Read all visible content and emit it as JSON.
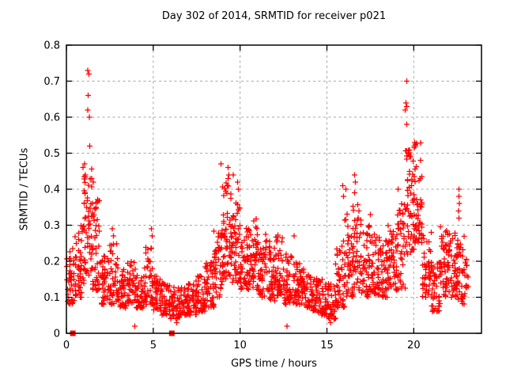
{
  "chart_data": {
    "type": "scatter",
    "title": "Day 302 of 2014, SRMTID for receiver p021",
    "xlabel": "GPS time / hours",
    "ylabel": "SRMTID / TECUs",
    "xlim": [
      0,
      23.9
    ],
    "ylim": [
      0,
      0.8
    ],
    "x_data_end": 23.15,
    "xtick_values": [
      0,
      5,
      10,
      15,
      20
    ],
    "xtick_labels": [
      "0",
      "5",
      "10",
      "15",
      "20"
    ],
    "ytick_values": [
      0,
      0.1,
      0.2,
      0.3,
      0.4,
      0.5,
      0.6,
      0.7,
      0.8
    ],
    "ytick_labels": [
      "0",
      "0.1",
      "0.2",
      "0.3",
      "0.4",
      "0.5",
      "0.6",
      "0.7",
      "0.8"
    ],
    "grid": true,
    "legend": "none",
    "marker": "plus-cross",
    "marker_color": "#ff0000",
    "grid_color": "#a6a6a6",
    "axis_color": "#000000",
    "background_color": "#ffffff",
    "series_name": "SRMTID",
    "density_bins_format": [
      "bin_start_hour",
      "y_low",
      "y_high",
      "point_count"
    ],
    "density_bin_width_hours": 0.5,
    "density_bins": [
      [
        0.0,
        0.08,
        0.24,
        40
      ],
      [
        0.5,
        0.1,
        0.3,
        46
      ],
      [
        1.0,
        0.16,
        0.46,
        56
      ],
      [
        1.5,
        0.12,
        0.38,
        48
      ],
      [
        2.0,
        0.08,
        0.22,
        42
      ],
      [
        2.5,
        0.08,
        0.26,
        44
      ],
      [
        3.0,
        0.07,
        0.18,
        40
      ],
      [
        3.5,
        0.08,
        0.2,
        42
      ],
      [
        4.0,
        0.07,
        0.16,
        40
      ],
      [
        4.5,
        0.08,
        0.24,
        44
      ],
      [
        5.0,
        0.06,
        0.16,
        40
      ],
      [
        5.5,
        0.05,
        0.14,
        40
      ],
      [
        6.0,
        0.04,
        0.13,
        40
      ],
      [
        6.5,
        0.05,
        0.13,
        40
      ],
      [
        7.0,
        0.05,
        0.15,
        42
      ],
      [
        7.5,
        0.06,
        0.16,
        42
      ],
      [
        8.0,
        0.07,
        0.2,
        44
      ],
      [
        8.5,
        0.1,
        0.3,
        48
      ],
      [
        9.0,
        0.15,
        0.42,
        54
      ],
      [
        9.5,
        0.14,
        0.38,
        50
      ],
      [
        10.0,
        0.12,
        0.3,
        48
      ],
      [
        10.5,
        0.12,
        0.32,
        48
      ],
      [
        11.0,
        0.1,
        0.28,
        46
      ],
      [
        11.5,
        0.09,
        0.26,
        45
      ],
      [
        12.0,
        0.1,
        0.28,
        45
      ],
      [
        12.5,
        0.08,
        0.22,
        44
      ],
      [
        13.0,
        0.08,
        0.2,
        42
      ],
      [
        13.5,
        0.07,
        0.18,
        42
      ],
      [
        14.0,
        0.06,
        0.16,
        42
      ],
      [
        14.5,
        0.05,
        0.15,
        40
      ],
      [
        15.0,
        0.04,
        0.14,
        40
      ],
      [
        15.5,
        0.07,
        0.26,
        44
      ],
      [
        16.0,
        0.1,
        0.34,
        46
      ],
      [
        16.5,
        0.12,
        0.36,
        48
      ],
      [
        17.0,
        0.1,
        0.3,
        45
      ],
      [
        17.5,
        0.1,
        0.28,
        45
      ],
      [
        18.0,
        0.1,
        0.26,
        45
      ],
      [
        18.5,
        0.12,
        0.3,
        45
      ],
      [
        19.0,
        0.12,
        0.36,
        46
      ],
      [
        19.5,
        0.22,
        0.53,
        52
      ],
      [
        20.0,
        0.25,
        0.53,
        52
      ],
      [
        20.5,
        0.1,
        0.28,
        45
      ],
      [
        21.0,
        0.06,
        0.2,
        44
      ],
      [
        21.5,
        0.1,
        0.3,
        46
      ],
      [
        22.0,
        0.1,
        0.28,
        44
      ],
      [
        22.5,
        0.08,
        0.28,
        42
      ],
      [
        23.0,
        0.12,
        0.22,
        10
      ]
    ],
    "outlier_points": [
      [
        1.22,
        0.73
      ],
      [
        1.3,
        0.72
      ],
      [
        1.25,
        0.66
      ],
      [
        1.22,
        0.62
      ],
      [
        1.32,
        0.6
      ],
      [
        1.35,
        0.52
      ],
      [
        1.05,
        0.47
      ],
      [
        0.95,
        0.46
      ],
      [
        1.1,
        0.44
      ],
      [
        1.45,
        0.43
      ],
      [
        1.55,
        0.42
      ],
      [
        2.65,
        0.29
      ],
      [
        2.7,
        0.27
      ],
      [
        4.9,
        0.29
      ],
      [
        4.95,
        0.27
      ],
      [
        8.9,
        0.47
      ],
      [
        9.3,
        0.46
      ],
      [
        9.35,
        0.44
      ],
      [
        9.3,
        0.43
      ],
      [
        9.6,
        0.44
      ],
      [
        9.85,
        0.42
      ],
      [
        9.9,
        0.4
      ],
      [
        13.1,
        0.27
      ],
      [
        15.9,
        0.41
      ],
      [
        15.95,
        0.38
      ],
      [
        16.1,
        0.4
      ],
      [
        16.6,
        0.44
      ],
      [
        16.65,
        0.42
      ],
      [
        16.6,
        0.39
      ],
      [
        17.5,
        0.33
      ],
      [
        19.1,
        0.4
      ],
      [
        19.6,
        0.7
      ],
      [
        19.55,
        0.64
      ],
      [
        19.6,
        0.63
      ],
      [
        19.5,
        0.62
      ],
      [
        19.6,
        0.58
      ],
      [
        20.05,
        0.53
      ],
      [
        20.1,
        0.52
      ],
      [
        22.6,
        0.4
      ],
      [
        22.6,
        0.38
      ],
      [
        22.62,
        0.36
      ],
      [
        22.58,
        0.34
      ],
      [
        22.6,
        0.32
      ],
      [
        3.93,
        0.02
      ],
      [
        6.35,
        0.03
      ],
      [
        12.7,
        0.02
      ],
      [
        15.2,
        0.03
      ]
    ],
    "zero_value_marker_hours": [
      0.37,
      6.07
    ]
  }
}
